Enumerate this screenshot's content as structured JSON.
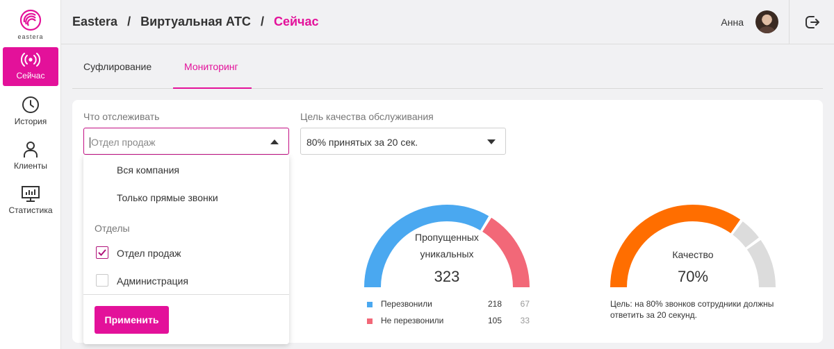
{
  "brand": {
    "name": "eastera",
    "accent": "#e3119a"
  },
  "sidebar": {
    "items": [
      {
        "label": "Сейчас",
        "icon": "broadcast-icon",
        "active": true
      },
      {
        "label": "История",
        "icon": "clock-icon",
        "active": false
      },
      {
        "label": "Клиенты",
        "icon": "user-icon",
        "active": false
      },
      {
        "label": "Статистика",
        "icon": "chart-monitor-icon",
        "active": false
      }
    ]
  },
  "header": {
    "breadcrumb": [
      "Eastera",
      "Виртуальная АТС",
      "Сейчас"
    ],
    "separator": "/",
    "user_name": "Анна"
  },
  "tabs": [
    {
      "label": "Суфлирование",
      "active": false
    },
    {
      "label": "Мониторинг",
      "active": true
    }
  ],
  "filters": {
    "track": {
      "label": "Что отслеживать",
      "placeholder": "Отдел продаж"
    },
    "quality_goal": {
      "label": "Цель качества обслуживания",
      "value": "80% принятых за 20 сек."
    }
  },
  "dropdown": {
    "options": [
      "Вся компания",
      "Только прямые звонки"
    ],
    "group_label": "Отделы",
    "departments": [
      {
        "label": "Отдел продаж",
        "checked": true
      },
      {
        "label": "Администрация",
        "checked": false
      }
    ],
    "apply_label": "Применить"
  },
  "missed_gauge": {
    "title_line1": "Пропущенных",
    "title_line2": "уникальных",
    "value": "323",
    "legend": [
      {
        "label": "Перезвонили",
        "value": "218",
        "extra": "67",
        "color": "#4aa8f0"
      },
      {
        "label": "Не перезвонили",
        "value": "105",
        "extra": "33",
        "color": "#f26878"
      }
    ]
  },
  "quality_gauge": {
    "title": "Качество",
    "value": "70%",
    "fraction": 0.7,
    "color": "#ff6e00",
    "note": "Цель: на 80% звонков сотрудники должны ответить за 20 секунд."
  }
}
